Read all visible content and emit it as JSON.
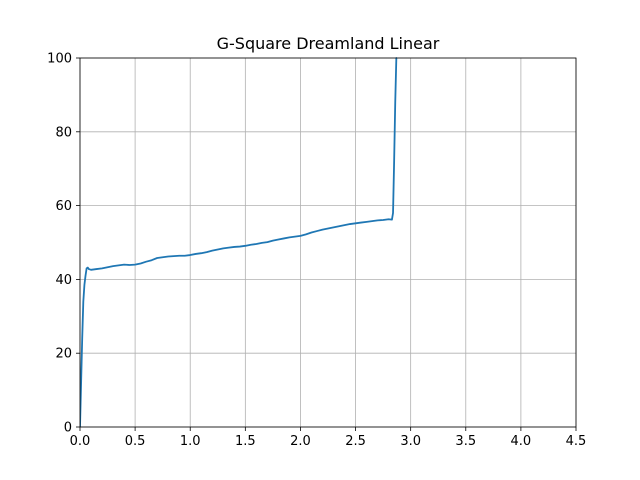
{
  "chart_data": {
    "type": "line",
    "title": "G-Square Dreamland Linear",
    "xlabel": "",
    "ylabel": "",
    "xlim": [
      0.0,
      4.5
    ],
    "ylim": [
      0,
      100
    ],
    "x_ticks": [
      0.0,
      0.5,
      1.0,
      1.5,
      2.0,
      2.5,
      3.0,
      3.5,
      4.0,
      4.5
    ],
    "x_tick_labels": [
      "0.0",
      "0.5",
      "1.0",
      "1.5",
      "2.0",
      "2.5",
      "3.0",
      "3.5",
      "4.0",
      "4.5"
    ],
    "y_ticks": [
      0,
      20,
      40,
      60,
      80,
      100
    ],
    "y_tick_labels": [
      "0",
      "20",
      "40",
      "60",
      "80",
      "100"
    ],
    "grid": true,
    "legend": "none",
    "series": [
      {
        "color": "#1f77b4",
        "x": [
          0.0,
          0.01,
          0.02,
          0.03,
          0.04,
          0.05,
          0.06,
          0.07,
          0.08,
          0.1,
          0.15,
          0.2,
          0.25,
          0.3,
          0.35,
          0.4,
          0.45,
          0.5,
          0.55,
          0.6,
          0.65,
          0.7,
          0.75,
          0.8,
          0.85,
          0.9,
          0.95,
          1.0,
          1.05,
          1.1,
          1.15,
          1.2,
          1.25,
          1.3,
          1.35,
          1.4,
          1.45,
          1.5,
          1.55,
          1.6,
          1.65,
          1.7,
          1.75,
          1.8,
          1.85,
          1.9,
          1.95,
          2.0,
          2.05,
          2.1,
          2.15,
          2.2,
          2.25,
          2.3,
          2.35,
          2.4,
          2.45,
          2.5,
          2.55,
          2.6,
          2.65,
          2.7,
          2.75,
          2.8,
          2.83,
          2.84,
          2.85,
          2.86,
          2.87
        ],
        "y": [
          0.0,
          12.0,
          24.0,
          34.0,
          38.5,
          41.0,
          43.0,
          43.2,
          42.8,
          42.6,
          42.8,
          43.0,
          43.3,
          43.6,
          43.8,
          44.0,
          43.9,
          44.0,
          44.3,
          44.8,
          45.2,
          45.8,
          46.0,
          46.2,
          46.3,
          46.4,
          46.4,
          46.6,
          46.9,
          47.1,
          47.4,
          47.8,
          48.1,
          48.4,
          48.6,
          48.8,
          48.9,
          49.1,
          49.4,
          49.6,
          49.9,
          50.1,
          50.5,
          50.8,
          51.1,
          51.4,
          51.6,
          51.8,
          52.2,
          52.7,
          53.1,
          53.5,
          53.8,
          54.1,
          54.4,
          54.7,
          55.0,
          55.2,
          55.4,
          55.6,
          55.8,
          56.0,
          56.1,
          56.3,
          56.2,
          58.0,
          72.0,
          88.0,
          100.0
        ]
      }
    ]
  }
}
